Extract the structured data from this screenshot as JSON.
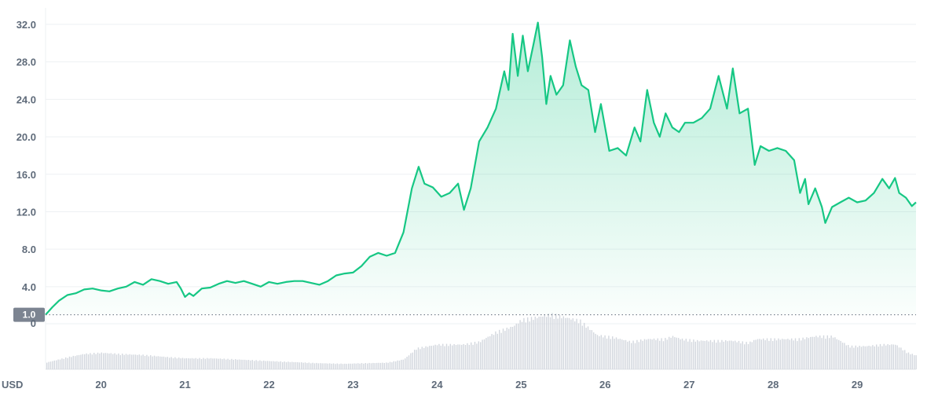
{
  "chart_data": {
    "type": "area",
    "title": "",
    "xlabel": "",
    "ylabel": "USD",
    "currency_label": "USD",
    "baseline_label": "1.0",
    "baseline_value": 1.0,
    "volume_zero_label": "0",
    "ylim": [
      0,
      33.5
    ],
    "y_ticks": [
      4.0,
      8.0,
      12.0,
      16.0,
      20.0,
      24.0,
      28.0,
      32.0
    ],
    "y_tick_labels": [
      "4.0",
      "8.0",
      "12.0",
      "16.0",
      "20.0",
      "24.0",
      "28.0",
      "32.0"
    ],
    "x_ticks": [
      20,
      21,
      22,
      23,
      24,
      25,
      26,
      27,
      28,
      29
    ],
    "x_tick_labels": [
      "20",
      "21",
      "22",
      "23",
      "24",
      "25",
      "26",
      "27",
      "28",
      "29"
    ],
    "xlim": [
      19.34,
      29.7
    ],
    "grid": true,
    "colors": {
      "line": "#16c784",
      "fill": "#16c784",
      "volume": "#d3d7de",
      "grid": "#eef0f3",
      "baseline_tag": "#7c8491",
      "text": "#5f6b7a"
    },
    "series": [
      {
        "values": [
          [
            19.34,
            1.0
          ],
          [
            19.42,
            1.8
          ],
          [
            19.5,
            2.5
          ],
          [
            19.6,
            3.1
          ],
          [
            19.7,
            3.3
          ],
          [
            19.8,
            3.7
          ],
          [
            19.9,
            3.8
          ],
          [
            20.0,
            3.6
          ],
          [
            20.1,
            3.5
          ],
          [
            20.2,
            3.8
          ],
          [
            20.3,
            4.0
          ],
          [
            20.4,
            4.5
          ],
          [
            20.5,
            4.2
          ],
          [
            20.6,
            4.8
          ],
          [
            20.7,
            4.6
          ],
          [
            20.8,
            4.3
          ],
          [
            20.9,
            4.5
          ],
          [
            20.95,
            3.8
          ],
          [
            21.0,
            2.9
          ],
          [
            21.05,
            3.3
          ],
          [
            21.1,
            3.0
          ],
          [
            21.2,
            3.8
          ],
          [
            21.3,
            3.9
          ],
          [
            21.4,
            4.3
          ],
          [
            21.5,
            4.6
          ],
          [
            21.6,
            4.4
          ],
          [
            21.7,
            4.6
          ],
          [
            21.8,
            4.3
          ],
          [
            21.9,
            4.0
          ],
          [
            22.0,
            4.5
          ],
          [
            22.1,
            4.3
          ],
          [
            22.2,
            4.5
          ],
          [
            22.3,
            4.6
          ],
          [
            22.4,
            4.6
          ],
          [
            22.5,
            4.4
          ],
          [
            22.6,
            4.2
          ],
          [
            22.7,
            4.6
          ],
          [
            22.8,
            5.2
          ],
          [
            22.9,
            5.4
          ],
          [
            23.0,
            5.5
          ],
          [
            23.1,
            6.2
          ],
          [
            23.2,
            7.2
          ],
          [
            23.3,
            7.6
          ],
          [
            23.4,
            7.3
          ],
          [
            23.5,
            7.6
          ],
          [
            23.6,
            9.8
          ],
          [
            23.7,
            14.5
          ],
          [
            23.78,
            16.8
          ],
          [
            23.85,
            15.0
          ],
          [
            23.95,
            14.6
          ],
          [
            24.05,
            13.6
          ],
          [
            24.15,
            14.0
          ],
          [
            24.25,
            15.0
          ],
          [
            24.32,
            12.2
          ],
          [
            24.4,
            14.5
          ],
          [
            24.5,
            19.5
          ],
          [
            24.6,
            21.0
          ],
          [
            24.7,
            23.0
          ],
          [
            24.8,
            27.0
          ],
          [
            24.85,
            25.0
          ],
          [
            24.9,
            31.0
          ],
          [
            24.96,
            26.5
          ],
          [
            25.02,
            30.8
          ],
          [
            25.08,
            27.0
          ],
          [
            25.15,
            30.0
          ],
          [
            25.2,
            32.2
          ],
          [
            25.25,
            28.5
          ],
          [
            25.3,
            23.5
          ],
          [
            25.35,
            26.5
          ],
          [
            25.42,
            24.5
          ],
          [
            25.5,
            25.5
          ],
          [
            25.58,
            30.3
          ],
          [
            25.65,
            27.5
          ],
          [
            25.72,
            25.5
          ],
          [
            25.8,
            25.0
          ],
          [
            25.88,
            20.5
          ],
          [
            25.95,
            23.5
          ],
          [
            26.05,
            18.5
          ],
          [
            26.15,
            18.8
          ],
          [
            26.25,
            18.0
          ],
          [
            26.35,
            21.0
          ],
          [
            26.42,
            19.5
          ],
          [
            26.5,
            25.0
          ],
          [
            26.58,
            21.5
          ],
          [
            26.65,
            20.0
          ],
          [
            26.72,
            22.5
          ],
          [
            26.8,
            21.0
          ],
          [
            26.88,
            20.5
          ],
          [
            26.95,
            21.5
          ],
          [
            27.05,
            21.5
          ],
          [
            27.15,
            22.0
          ],
          [
            27.25,
            23.0
          ],
          [
            27.35,
            26.5
          ],
          [
            27.45,
            23.0
          ],
          [
            27.52,
            27.3
          ],
          [
            27.6,
            22.5
          ],
          [
            27.7,
            23.0
          ],
          [
            27.78,
            17.0
          ],
          [
            27.85,
            19.0
          ],
          [
            27.95,
            18.5
          ],
          [
            28.05,
            18.8
          ],
          [
            28.15,
            18.5
          ],
          [
            28.25,
            17.5
          ],
          [
            28.32,
            14.0
          ],
          [
            28.38,
            15.5
          ],
          [
            28.42,
            12.8
          ],
          [
            28.5,
            14.5
          ],
          [
            28.58,
            12.5
          ],
          [
            28.62,
            10.8
          ],
          [
            28.7,
            12.5
          ],
          [
            28.8,
            13.0
          ],
          [
            28.9,
            13.5
          ],
          [
            29.0,
            13.0
          ],
          [
            29.1,
            13.2
          ],
          [
            29.2,
            14.0
          ],
          [
            29.3,
            15.5
          ],
          [
            29.38,
            14.5
          ],
          [
            29.45,
            15.6
          ],
          [
            29.5,
            14.0
          ],
          [
            29.58,
            13.5
          ],
          [
            29.65,
            12.6
          ],
          [
            29.7,
            13.0
          ]
        ]
      }
    ],
    "volume": [
      [
        19.34,
        0.12
      ],
      [
        19.6,
        0.22
      ],
      [
        19.8,
        0.28
      ],
      [
        20.0,
        0.3
      ],
      [
        20.2,
        0.28
      ],
      [
        20.5,
        0.26
      ],
      [
        20.8,
        0.22
      ],
      [
        21.0,
        0.2
      ],
      [
        21.3,
        0.2
      ],
      [
        21.6,
        0.18
      ],
      [
        22.0,
        0.15
      ],
      [
        22.3,
        0.13
      ],
      [
        22.6,
        0.11
      ],
      [
        22.9,
        0.1
      ],
      [
        23.1,
        0.11
      ],
      [
        23.4,
        0.12
      ],
      [
        23.6,
        0.18
      ],
      [
        23.75,
        0.38
      ],
      [
        24.0,
        0.45
      ],
      [
        24.3,
        0.45
      ],
      [
        24.5,
        0.5
      ],
      [
        24.7,
        0.68
      ],
      [
        24.9,
        0.78
      ],
      [
        25.0,
        0.9
      ],
      [
        25.2,
        0.95
      ],
      [
        25.35,
        1.0
      ],
      [
        25.5,
        0.95
      ],
      [
        25.7,
        0.88
      ],
      [
        25.9,
        0.62
      ],
      [
        26.1,
        0.58
      ],
      [
        26.3,
        0.5
      ],
      [
        26.5,
        0.55
      ],
      [
        26.7,
        0.55
      ],
      [
        26.8,
        0.6
      ],
      [
        26.9,
        0.55
      ],
      [
        27.1,
        0.52
      ],
      [
        27.3,
        0.52
      ],
      [
        27.5,
        0.52
      ],
      [
        27.7,
        0.48
      ],
      [
        27.8,
        0.55
      ],
      [
        28.0,
        0.55
      ],
      [
        28.3,
        0.55
      ],
      [
        28.5,
        0.6
      ],
      [
        28.7,
        0.6
      ],
      [
        28.9,
        0.42
      ],
      [
        29.1,
        0.42
      ],
      [
        29.3,
        0.45
      ],
      [
        29.45,
        0.45
      ],
      [
        29.6,
        0.3
      ],
      [
        29.7,
        0.25
      ]
    ]
  }
}
